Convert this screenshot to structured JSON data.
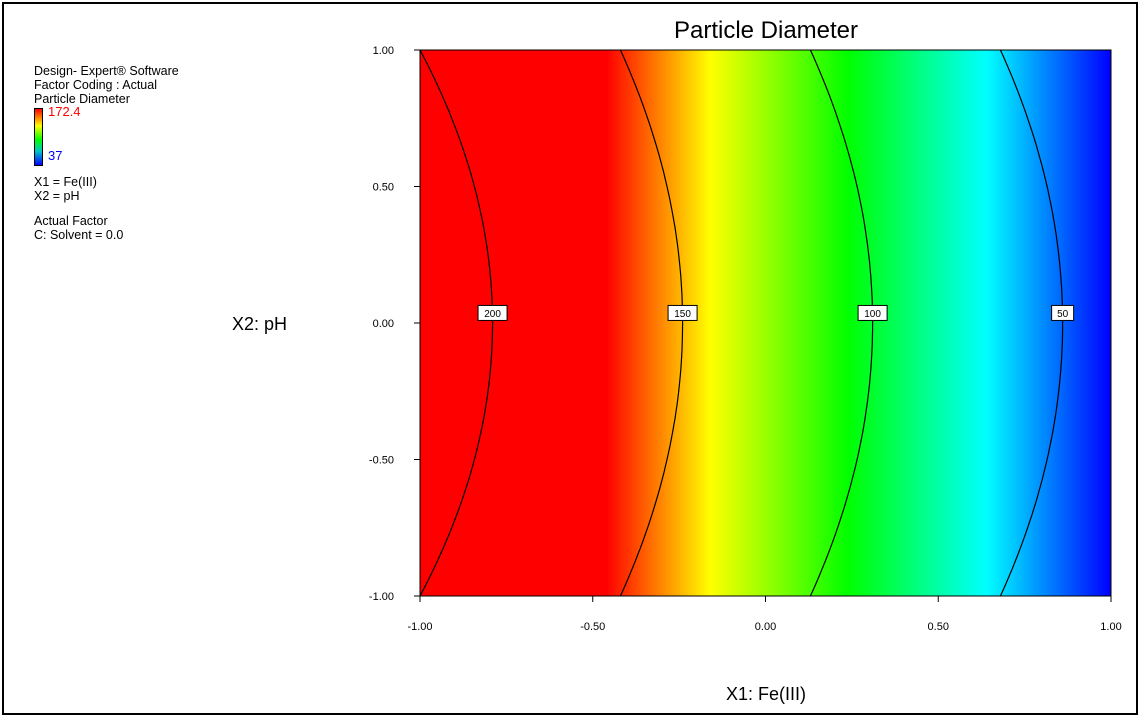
{
  "panel": {
    "software": "Design- Expert® Software",
    "coding": "Factor Coding : Actual",
    "response": "Particle Diameter",
    "color_max": "172.4",
    "color_min": "37",
    "x1_def": "X1 =  Fe(III)",
    "x2_def": "X2 =  pH",
    "actual_factor_heading": "Actual Factor",
    "actual_factor": "C: Solvent = 0.0"
  },
  "chart_data": {
    "type": "contour",
    "title": "Particle Diameter",
    "xlabel": "X1: Fe(III)",
    "ylabel": "X2: pH",
    "xlim": [
      -1.0,
      1.0
    ],
    "ylim": [
      -1.0,
      1.0
    ],
    "x_ticks": [
      "-1.00",
      "-0.50",
      "0.00",
      "0.50",
      "1.00"
    ],
    "y_ticks": [
      "1.00",
      "0.50",
      "0.00",
      "-0.50",
      "-1.00"
    ],
    "colormap": [
      "#ff0000",
      "#ffff00",
      "#00ff00",
      "#00ffff",
      "#0000ff"
    ],
    "contours": [
      {
        "label": "200",
        "vertex_x": -0.79,
        "x_at_y_extremes": -1.0
      },
      {
        "label": "150",
        "vertex_x": -0.24,
        "x_at_y_extremes": -0.42
      },
      {
        "label": "100",
        "vertex_x": 0.31,
        "x_at_y_extremes": 0.13
      },
      {
        "label": "50",
        "vertex_x": 0.86,
        "x_at_y_extremes": 0.68
      }
    ]
  }
}
